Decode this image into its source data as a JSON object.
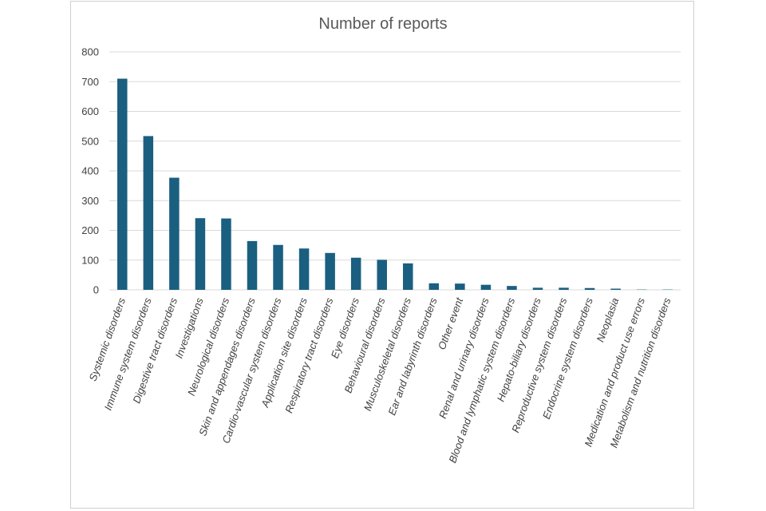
{
  "chart_data": {
    "type": "bar",
    "title": "Number of reports",
    "xlabel": "",
    "ylabel": "",
    "ylim": [
      0,
      800
    ],
    "yticks": [
      0,
      100,
      200,
      300,
      400,
      500,
      600,
      700,
      800
    ],
    "grid": true,
    "legend": "none",
    "bar_color": "#1a5f80",
    "categories": [
      "Systemic disorders",
      "Immune system disorders",
      "Digestive tract disorders",
      "Investigations",
      "Neurological disorders",
      "Skin and appendages disorders",
      "Cardio-vascular system disorders",
      "Application site disorders",
      "Respiratory tract disorders",
      "Eye disorders",
      "Behavioural disorders",
      "Musculoskeletal disorders",
      "Ear and labyrinth disorders",
      "Other event",
      "Renal and urinary disorders",
      "Blood and lymphatic system disorders",
      "Hepato-biliary disorders",
      "Reproductive system disorders",
      "Endocrine system disorders",
      "Neoplasia",
      "Medication and product use errors",
      "Metabolism and nutrition disorders"
    ],
    "values": [
      710,
      517,
      377,
      241,
      240,
      164,
      151,
      139,
      124,
      108,
      101,
      89,
      22,
      21,
      17,
      13,
      7,
      7,
      6,
      4,
      1,
      1
    ]
  }
}
